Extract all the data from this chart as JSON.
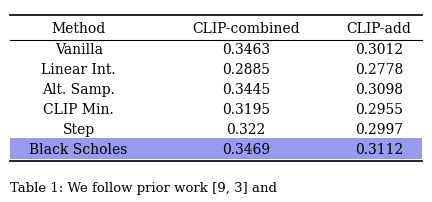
{
  "columns": [
    "Method",
    "CLIP-combined",
    "CLIP-add"
  ],
  "rows": [
    [
      "Vanilla",
      "0.3463",
      "0.3012"
    ],
    [
      "Linear Int.",
      "0.2885",
      "0.2778"
    ],
    [
      "Alt. Samp.",
      "0.3445",
      "0.3098"
    ],
    [
      "CLIP Min.",
      "0.3195",
      "0.2955"
    ],
    [
      "Step",
      "0.322",
      "0.2997"
    ],
    [
      "Black Scholes",
      "0.3469",
      "0.3112"
    ]
  ],
  "highlight_row": 5,
  "highlight_color": "#9999ee",
  "background_color": "#ffffff",
  "caption": "Table 1: We follow prior work [9, 3] and",
  "font_size": 10,
  "header_font_size": 10
}
